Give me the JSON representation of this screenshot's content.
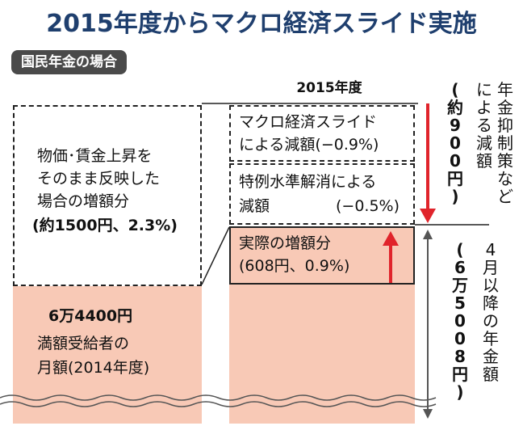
{
  "title": "2015年度からマクロ経済スライド実施",
  "badge": "国民年金の場合",
  "year_label": "2015年度",
  "left_box": {
    "line1": "物価･賃金上昇を",
    "line2": "そのまま反映した",
    "line3": "場合の増額分",
    "line4": "(約1500円、2.3%)"
  },
  "base": {
    "amount": "6万4400円",
    "line2": "満額受給者の",
    "line3": "月額(2014年度)"
  },
  "macro_box": {
    "line1": "マクロ経済スライド",
    "line2": "による減額(−0.9%)"
  },
  "special_box": {
    "line1": "特例水準解消による",
    "line2": "減額",
    "pct": "(−0.5%)"
  },
  "actual_box": {
    "line1": "実際の増額分",
    "line2": "(608円、0.9%)"
  },
  "side_top": {
    "col1": "年金抑制策など",
    "col2": "による減額",
    "col3": "(約900円)"
  },
  "side_bottom": {
    "col1": "4月以降の年金額",
    "col2": "(6万5008円)"
  },
  "colors": {
    "title": "#1f3f6e",
    "pink": "#f8c9b6",
    "red_arrow": "#e0242b",
    "gray_arrow": "#555555"
  }
}
